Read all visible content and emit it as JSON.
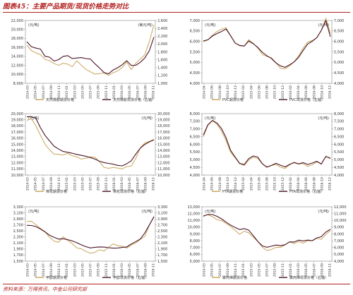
{
  "figure": {
    "title": "图表45：主要产品期货/现货价格走势对比",
    "source": "资料来源：万得资讯，中金公司研究部"
  },
  "colors": {
    "futures": "#c9a55a",
    "spot": "#4a1426",
    "axis": "#555555",
    "accent": "#b21f1f"
  },
  "chart_data": [
    {
      "type": "line",
      "title": "",
      "left_unit": "(元/吨)",
      "right_unit": "(美元/吨)",
      "ylim": [
        8000,
        22000
      ],
      "yticks": [
        8000,
        10000,
        12000,
        14000,
        16000,
        18000,
        20000,
        22000
      ],
      "ylim_right": [
        1000,
        2600
      ],
      "yticks_right": [
        1000,
        1200,
        1400,
        1600,
        1800,
        2000,
        2200,
        2400,
        2600
      ],
      "x_ticks": [
        "2014-03",
        "2014-05",
        "2014-07",
        "2014-09",
        "2014-11",
        "2015-01",
        "2015-03",
        "2015-05",
        "2015-07",
        "2015-09",
        "2015-11",
        "2016-01",
        "2016-03",
        "2016-05",
        "2016-07",
        "2016-09",
        "2016-11"
      ],
      "series": [
        {
          "name": "天然橡胶期货价格",
          "axis": "left",
          "style": "futures",
          "values": [
            16500,
            15400,
            14900,
            14400,
            13200,
            12900,
            12400,
            12100,
            12600,
            12300,
            11600,
            12900,
            12000,
            11200,
            10700,
            10100,
            10100,
            10200,
            9700,
            10400,
            10900,
            11600,
            12700,
            10900,
            12400,
            13400,
            14500,
            17400,
            21000
          ]
        },
        {
          "name": "天然橡胶现货价格（右轴）",
          "axis": "right",
          "style": "spot",
          "values": [
            2060,
            1920,
            1880,
            1870,
            1700,
            1680,
            1570,
            1590,
            1670,
            1700,
            1640,
            1660,
            1660,
            1620,
            1600,
            1490,
            1400,
            1290,
            1250,
            1330,
            1380,
            1460,
            1580,
            1470,
            1470,
            1530,
            1630,
            1820,
            2180
          ]
        }
      ]
    },
    {
      "type": "line",
      "title": "",
      "left_unit": "(元/吨)",
      "right_unit": "(元/吨)",
      "ylim": [
        4000,
        7000
      ],
      "yticks": [
        4000,
        4500,
        5000,
        5500,
        6000,
        6500,
        7000
      ],
      "ylim_right": [
        4000,
        7000
      ],
      "yticks_right": [
        4000,
        4500,
        5000,
        5500,
        6000,
        6500,
        7000
      ],
      "x_ticks": [
        "2014-04",
        "2014-06",
        "2014-08",
        "2014-10",
        "2014-12",
        "2015-02",
        "2015-04",
        "2015-06",
        "2015-08",
        "2015-10",
        "2015-12",
        "2016-02",
        "2016-04",
        "2016-06",
        "2016-08",
        "2016-10",
        "2016-12"
      ],
      "series": [
        {
          "name": "PVC期货价格",
          "axis": "left",
          "style": "futures",
          "values": [
            6000,
            6100,
            6300,
            6450,
            6550,
            6650,
            6300,
            5950,
            5800,
            5750,
            6050,
            5900,
            5700,
            5400,
            5300,
            5200,
            4950,
            4700,
            4700,
            4850,
            5050,
            5300,
            5650,
            5950,
            6050,
            6200,
            6550,
            7100,
            6350
          ]
        },
        {
          "name": "PVC现货价格（右轴）",
          "axis": "right",
          "style": "spot",
          "values": [
            6000,
            6050,
            6250,
            6400,
            6500,
            6600,
            6250,
            5900,
            5800,
            5800,
            6050,
            5900,
            5700,
            5450,
            5300,
            5200,
            5000,
            4850,
            4750,
            4850,
            5000,
            5250,
            5600,
            5900,
            6000,
            6150,
            6500,
            7000,
            6250
          ]
        }
      ]
    },
    {
      "type": "line",
      "title": "",
      "left_unit": "(元/吨)",
      "right_unit": "(元/吨)",
      "ylim": [
        10000,
        20000
      ],
      "yticks": [
        10000,
        11000,
        12000,
        13000,
        14000,
        15000,
        16000,
        17000,
        18000,
        19000,
        20000
      ],
      "ylim_right": [
        10000,
        20000
      ],
      "yticks_right": [
        10000,
        11000,
        12000,
        13000,
        14000,
        15000,
        16000,
        17000,
        18000,
        19000,
        20000
      ],
      "x_ticks": [
        "2014-03",
        "2014-05",
        "2014-07",
        "2014-09",
        "2014-11",
        "2015-01",
        "2015-03",
        "2015-05",
        "2015-07",
        "2015-09",
        "2015-11",
        "2016-01",
        "2016-03",
        "2016-05",
        "2016-07",
        "2016-09",
        "2016-11"
      ],
      "series": [
        {
          "name": "棉花期货价格",
          "axis": "left",
          "style": "futures",
          "values": [
            19000,
            19200,
            17900,
            16400,
            15000,
            14200,
            13500,
            13400,
            13200,
            13400,
            13100,
            13000,
            12700,
            12800,
            12900,
            12800,
            12100,
            11300,
            11200,
            11300,
            11100,
            10900,
            11300,
            11500,
            12800,
            14500,
            15200,
            15400,
            15700
          ]
        },
        {
          "name": "棉花现货价格（右轴）",
          "axis": "right",
          "style": "spot",
          "values": [
            19400,
            19500,
            19300,
            17800,
            16500,
            15500,
            14600,
            14200,
            13900,
            13800,
            13600,
            13300,
            13100,
            13000,
            12900,
            12700,
            12300,
            12000,
            11800,
            11700,
            11600,
            11600,
            11900,
            12300,
            13300,
            14300,
            15000,
            15500,
            15800
          ]
        }
      ]
    },
    {
      "type": "line",
      "title": "",
      "left_unit": "(元/吨)",
      "right_unit": "(元/吨)",
      "ylim": [
        4000,
        8000
      ],
      "yticks": [
        4000,
        4500,
        5000,
        5500,
        6000,
        6500,
        7000,
        7500,
        8000
      ],
      "ylim_right": [
        4000,
        8000
      ],
      "yticks_right": [
        4000,
        4500,
        5000,
        5500,
        6000,
        6500,
        7000,
        7500,
        8000
      ],
      "x_ticks": [
        "2014-04",
        "2014-06",
        "2014-08",
        "2014-10",
        "2014-12",
        "2015-02",
        "2015-04",
        "2015-06",
        "2015-08",
        "2015-10",
        "2015-12",
        "2016-02",
        "2016-04",
        "2016-06",
        "2016-08",
        "2016-10",
        "2016-12"
      ],
      "series": [
        {
          "name": "PTA期货价格",
          "axis": "left",
          "style": "futures",
          "values": [
            6500,
            7200,
            7500,
            7300,
            6900,
            6300,
            5500,
            5100,
            4700,
            4600,
            5000,
            5200,
            5100,
            4700,
            4500,
            4600,
            4700,
            4550,
            4450,
            4650,
            4800,
            4700,
            4750,
            4600,
            4700,
            4850,
            4700,
            5200,
            5050
          ]
        },
        {
          "name": "PTA现货价格（右轴）",
          "axis": "right",
          "style": "spot",
          "values": [
            6600,
            7300,
            7600,
            7400,
            7000,
            6400,
            5600,
            5200,
            4800,
            4700,
            5050,
            5200,
            5150,
            4750,
            4550,
            4650,
            4750,
            4600,
            4500,
            4700,
            4850,
            4750,
            4800,
            4650,
            4750,
            4900,
            4750,
            5250,
            5100
          ]
        }
      ]
    },
    {
      "type": "line",
      "title": "",
      "left_unit": "(元/吨)",
      "right_unit": "(元/吨)",
      "ylim": [
        1500,
        3300
      ],
      "yticks": [
        1500,
        1700,
        1900,
        2100,
        2300,
        2500,
        2700,
        2900,
        3100,
        3300
      ],
      "ylim_right": [
        1500,
        3300
      ],
      "yticks_right": [
        1500,
        1700,
        1900,
        2100,
        2300,
        2500,
        2700,
        2900,
        3100,
        3300
      ],
      "x_ticks": [
        "2014-03",
        "2014-05",
        "2014-07",
        "2014-09",
        "2014-11",
        "2015-01",
        "2015-03",
        "2015-05",
        "2015-07",
        "2015-09",
        "2015-11",
        "2016-01",
        "2016-03",
        "2016-05",
        "2016-07",
        "2016-09",
        "2016-11"
      ],
      "series": [
        {
          "name": "甲醇期货价格",
          "axis": "left",
          "style": "futures",
          "values": [
            2800,
            2800,
            2700,
            2600,
            2500,
            2300,
            2150,
            2100,
            2300,
            2200,
            2100,
            1950,
            1900,
            1800,
            1750,
            1800,
            1900,
            1850,
            1950,
            2050,
            2000,
            2000,
            1950,
            2050,
            2100,
            2200,
            2300,
            2700,
            3000
          ]
        },
        {
          "name": "甲醇现货价格（右轴）",
          "axis": "right",
          "style": "spot",
          "values": [
            2700,
            2700,
            2650,
            2550,
            2450,
            2350,
            2300,
            2250,
            2250,
            2200,
            2150,
            2100,
            2050,
            2000,
            1950,
            1950,
            1950,
            1950,
            1950,
            1950,
            1950,
            1950,
            1950,
            2050,
            2150,
            2250,
            2450,
            2700,
            2950
          ]
        }
      ]
    },
    {
      "type": "line",
      "title": "",
      "left_unit": "(元/吨)",
      "right_unit": "(元/吨)",
      "ylim": [
        5000,
        13000
      ],
      "yticks": [
        5000,
        6000,
        7000,
        8000,
        9000,
        10000,
        11000,
        12000,
        13000
      ],
      "ylim_right": [
        4000,
        12000
      ],
      "yticks_right": [
        4000,
        5000,
        6000,
        7000,
        8000,
        9000,
        10000,
        11000,
        12000
      ],
      "x_ticks": [
        "2014-03",
        "2014-05",
        "2014-07",
        "2014-09",
        "2014-11",
        "2015-01",
        "2015-03",
        "2015-05",
        "2015-07",
        "2015-09",
        "2015-11",
        "2016-01",
        "2016-03",
        "2016-05",
        "2016-07",
        "2016-09",
        "2016-11"
      ],
      "series": [
        {
          "name": "聚丙烯期货价格",
          "axis": "left",
          "style": "futures",
          "values": [
            11600,
            11800,
            11600,
            11200,
            11000,
            10500,
            10000,
            9500,
            9000,
            9500,
            9200,
            8500,
            7800,
            7000,
            6600,
            6800,
            7100,
            7000,
            7300,
            7800,
            7600,
            8000,
            7700,
            8000,
            7900,
            8300,
            8200,
            9000,
            9600
          ]
        },
        {
          "name": "聚丙烯现货价格（右轴）",
          "axis": "right",
          "style": "spot",
          "values": [
            10700,
            10900,
            10800,
            10500,
            10200,
            9800,
            9400,
            9000,
            8600,
            8700,
            8500,
            7800,
            7000,
            6300,
            6000,
            6100,
            6300,
            6300,
            6500,
            6900,
            6800,
            7000,
            6900,
            7100,
            7100,
            7500,
            7600,
            8200,
            8600
          ]
        }
      ]
    }
  ]
}
